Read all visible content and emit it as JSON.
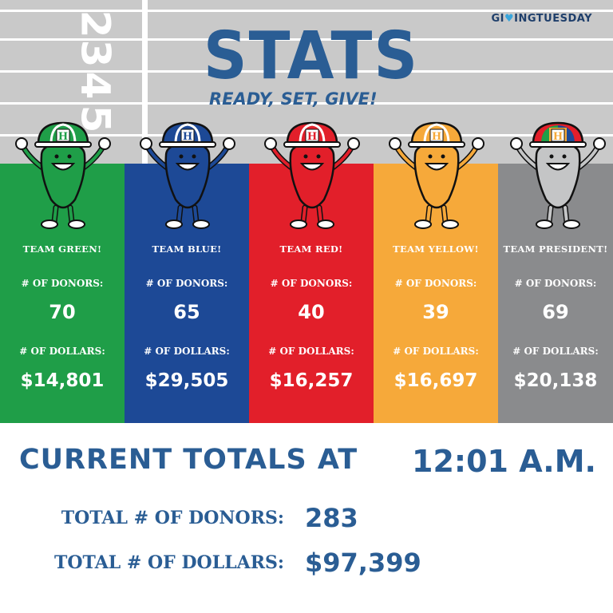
{
  "brand": {
    "logo_text_1": "GI",
    "logo_heart": "♥",
    "logo_text_2": "INGTUESDAY"
  },
  "header": {
    "title": "STATS",
    "subtitle": "READY, SET, GIVE!"
  },
  "track": {
    "lane_numbers": [
      "2",
      "3",
      "4",
      "5"
    ]
  },
  "teams": [
    {
      "name": "TEAM GREEN!",
      "donors_label": "# OF DONORS:",
      "donors": "70",
      "dollars_label": "# OF DOLLARS:",
      "dollars": "$14,801",
      "color": "#1f9e48",
      "hat": "#1f9e48",
      "body": "#1f9e48"
    },
    {
      "name": "TEAM BLUE!",
      "donors_label": "# OF DONORS:",
      "donors": "65",
      "dollars_label": "# OF DOLLARS:",
      "dollars": "$29,505",
      "color": "#1d4996",
      "hat": "#1d4996",
      "body": "#1d4996"
    },
    {
      "name": "TEAM RED!",
      "donors_label": "# OF DONORS:",
      "donors": "40",
      "dollars_label": "# OF DOLLARS:",
      "dollars": "$16,257",
      "color": "#e21f2a",
      "hat": "#e21f2a",
      "body": "#e21f2a"
    },
    {
      "name": "TEAM YELLOW!",
      "donors_label": "# OF DONORS:",
      "donors": "39",
      "dollars_label": "# OF DOLLARS:",
      "dollars": "$16,697",
      "color": "#f6a93a",
      "hat": "#f6a93a",
      "body": "#f6a93a"
    },
    {
      "name": "TEAM PRESIDENT!",
      "donors_label": "# OF DONORS:",
      "donors": "69",
      "dollars_label": "# OF DOLLARS:",
      "dollars": "$20,138",
      "color": "#8a8b8d",
      "hat": "#f6a93a",
      "body": "#c4c5c6"
    }
  ],
  "totals": {
    "heading": "CURRENT TOTALS AT",
    "time": "12:01 A.M.",
    "donors_label": "TOTAL # OF DONORS:",
    "donors_value": "283",
    "dollars_label": "TOTAL # OF DOLLARS:",
    "dollars_value": "$97,399"
  }
}
